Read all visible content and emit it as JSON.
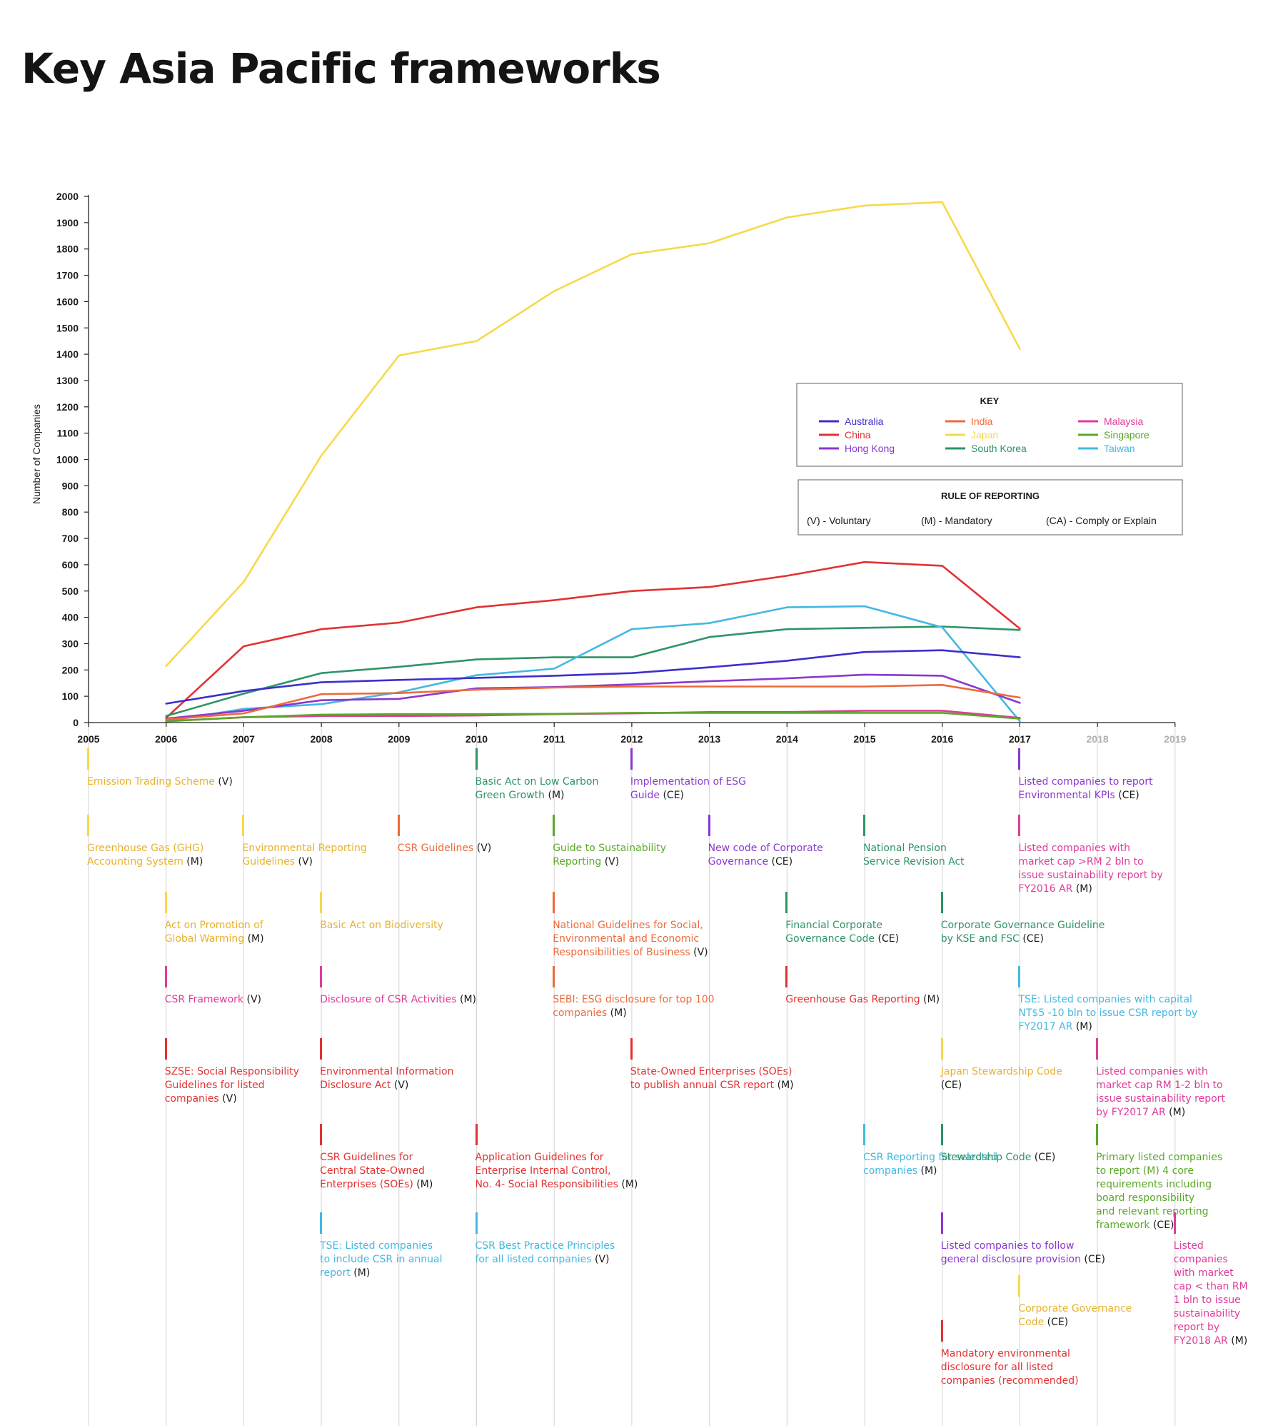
{
  "title": "Key Asia Pacific frameworks",
  "colors": {
    "Australia": "#3d2fcc",
    "China": "#e23232",
    "Hong Kong": "#8a38cf",
    "India": "#ed6a3a",
    "Japan": "#f7d94a",
    "South Korea": "#2e9466",
    "Malaysia": "#de3c99",
    "Singapore": "#5aa828",
    "Taiwan": "#44b8e2",
    "japan_text": "#e8b22c"
  },
  "chart_data": {
    "type": "line",
    "ylabel": "Number of Companies",
    "xlabel": "",
    "ylim": [
      0,
      2000
    ],
    "yticks": [
      0,
      100,
      200,
      300,
      400,
      500,
      600,
      700,
      800,
      900,
      1000,
      1100,
      1200,
      1300,
      1400,
      1500,
      1600,
      1700,
      1800,
      1900,
      2000
    ],
    "xlim": [
      2005,
      2019
    ],
    "xticks": [
      2005,
      2006,
      2007,
      2008,
      2009,
      2010,
      2011,
      2012,
      2013,
      2014,
      2015,
      2016,
      2017,
      2018,
      2019
    ],
    "x": [
      2006,
      2007,
      2008,
      2009,
      2010,
      2011,
      2012,
      2013,
      2014,
      2015,
      2016,
      2017
    ],
    "series": [
      {
        "name": "Japan",
        "values": [
          215,
          535,
          1015,
          1395,
          1450,
          1640,
          1780,
          1822,
          1920,
          1965,
          1978,
          1420
        ]
      },
      {
        "name": "China",
        "values": [
          18,
          290,
          355,
          380,
          438,
          465,
          500,
          515,
          558,
          610,
          596,
          357
        ]
      },
      {
        "name": "South Korea",
        "values": [
          25,
          110,
          188,
          212,
          240,
          248,
          248,
          325,
          355,
          360,
          365,
          352
        ]
      },
      {
        "name": "Taiwan",
        "values": [
          5,
          52,
          70,
          115,
          180,
          205,
          355,
          378,
          438,
          442,
          362,
          5
        ]
      },
      {
        "name": "Australia",
        "values": [
          72,
          120,
          153,
          162,
          170,
          178,
          188,
          210,
          235,
          268,
          275,
          248
        ]
      },
      {
        "name": "Hong Kong",
        "values": [
          15,
          45,
          85,
          90,
          130,
          135,
          145,
          157,
          168,
          182,
          178,
          75
        ]
      },
      {
        "name": "India",
        "values": [
          12,
          35,
          108,
          112,
          125,
          133,
          137,
          137,
          137,
          137,
          143,
          95
        ]
      },
      {
        "name": "Malaysia",
        "values": [
          5,
          20,
          25,
          25,
          27,
          32,
          35,
          40,
          40,
          45,
          45,
          18
        ]
      },
      {
        "name": "Singapore",
        "values": [
          5,
          20,
          30,
          32,
          32,
          33,
          37,
          37,
          37,
          37,
          37,
          15
        ]
      }
    ],
    "legend": {
      "title": "KEY",
      "placement": "right",
      "entries": [
        "Australia",
        "China",
        "Hong Kong",
        "India",
        "Japan",
        "South Korea",
        "Malaysia",
        "Singapore",
        "Taiwan"
      ]
    },
    "rule_box": {
      "title": "RULE OF REPORTING",
      "items": [
        "(V) - Voluntary",
        "(M) - Mandatory",
        "(CA) - Comply or Explain"
      ]
    }
  },
  "annotations": [
    {
      "year": 2005,
      "row": 0,
      "country": "Japan",
      "lines": [
        "Emission Trading Scheme"
      ],
      "code": "(V)"
    },
    {
      "year": 2005,
      "row": 1,
      "country": "Japan",
      "lines": [
        "Greenhouse Gas (GHG)",
        "Accounting System"
      ],
      "code": "(M)"
    },
    {
      "year": 2006,
      "row": 2,
      "country": "Japan",
      "lines": [
        "Act on Promotion of",
        "Global Warming"
      ],
      "code": "(M)"
    },
    {
      "year": 2006,
      "row": 3,
      "country": "Malaysia",
      "lines": [
        "CSR Framework"
      ],
      "code": "(V)"
    },
    {
      "year": 2006,
      "row": 4,
      "country": "China",
      "lines": [
        "SZSE: Social Responsibility",
        "Guidelines for listed",
        "companies"
      ],
      "code": "(V)"
    },
    {
      "year": 2007,
      "row": 1,
      "country": "Japan",
      "lines": [
        "Environmental Reporting",
        "Guidelines"
      ],
      "code": "(V)"
    },
    {
      "year": 2008,
      "row": 2,
      "country": "Japan",
      "lines": [
        "Basic Act on Biodiversity"
      ],
      "code": ""
    },
    {
      "year": 2008,
      "row": 3,
      "country": "Malaysia",
      "lines": [
        "Disclosure of CSR Activities"
      ],
      "code": "(M)"
    },
    {
      "year": 2008,
      "row": 4,
      "country": "China",
      "lines": [
        "Environmental Information",
        "Disclosure Act"
      ],
      "code": "(V)"
    },
    {
      "year": 2008,
      "row": 5,
      "country": "China",
      "lines": [
        "CSR Guidelines for",
        "Central State-Owned",
        "Enterprises (SOEs)"
      ],
      "code": "(M)"
    },
    {
      "year": 2008,
      "row": 6,
      "country": "Taiwan",
      "lines": [
        "TSE: Listed companies",
        "to include CSR in annual",
        "report"
      ],
      "code": "(M)"
    },
    {
      "year": 2009,
      "row": 1,
      "country": "India",
      "lines": [
        "CSR Guidelines"
      ],
      "code": "(V)"
    },
    {
      "year": 2010,
      "row": 0,
      "country": "South Korea",
      "lines": [
        "Basic Act on Low Carbon",
        "Green Growth"
      ],
      "code": "(M)"
    },
    {
      "year": 2010,
      "row": 5,
      "country": "China",
      "lines": [
        "Application Guidelines for",
        "Enterprise Internal Control,",
        "No. 4- Social Responsibilities"
      ],
      "code": "(M)"
    },
    {
      "year": 2010,
      "row": 6,
      "country": "Taiwan",
      "lines": [
        "CSR Best Practice Principles",
        "for all listed companies"
      ],
      "code": "(V)"
    },
    {
      "year": 2011,
      "row": 1,
      "country": "Singapore",
      "lines": [
        "Guide to Sustainability",
        "Reporting"
      ],
      "code": "(V)"
    },
    {
      "year": 2011,
      "row": 2,
      "country": "India",
      "lines": [
        "National Guidelines for Social,",
        "Environmental and Economic",
        "Responsibilities of Business"
      ],
      "code": "(V)"
    },
    {
      "year": 2011,
      "row": 3,
      "country": "India",
      "lines": [
        "SEBI: ESG disclosure for top 100",
        "companies"
      ],
      "code": "(M)"
    },
    {
      "year": 2012,
      "row": 0,
      "country": "Hong Kong",
      "lines": [
        "Implementation of ESG",
        "Guide"
      ],
      "code": "(CE)"
    },
    {
      "year": 2012,
      "row": 4,
      "country": "China",
      "lines": [
        "State-Owned Enterprises (SOEs)",
        "to publish annual CSR report"
      ],
      "code": "(M)"
    },
    {
      "year": 2013,
      "row": 1,
      "country": "Hong Kong",
      "lines": [
        "New code of Corporate",
        "Governance"
      ],
      "code": "(CE)"
    },
    {
      "year": 2014,
      "row": 2,
      "country": "South Korea",
      "lines": [
        "Financial Corporate",
        "Governance Code"
      ],
      "code": "(CE)"
    },
    {
      "year": 2014,
      "row": 3,
      "country": "China",
      "lines": [
        "Greenhouse Gas Reporting"
      ],
      "code": "(M)"
    },
    {
      "year": 2015,
      "row": 1,
      "country": "South Korea",
      "lines": [
        "National Pension",
        "Service Revision Act"
      ],
      "code": ""
    },
    {
      "year": 2015,
      "row": 5,
      "country": "Taiwan",
      "lines": [
        "CSR Reporting for selected",
        "companies"
      ],
      "code": "(M)"
    },
    {
      "year": 2016,
      "row": 2,
      "country": "South Korea",
      "lines": [
        "Corporate Governance Guideline",
        "by KSE and FSC"
      ],
      "code": "(CE)"
    },
    {
      "year": 2016,
      "row": 4,
      "country": "Japan",
      "lines": [
        "Japan Stewardship Code",
        ""
      ],
      "code": "(CE)"
    },
    {
      "year": 2016,
      "row": 5,
      "country": "South Korea",
      "lines": [
        "Stewardship Code"
      ],
      "code": "(CE)"
    },
    {
      "year": 2016,
      "row": 6,
      "country": "Hong Kong",
      "lines": [
        "Listed companies to follow",
        "general disclosure provision"
      ],
      "code": "(CE)"
    },
    {
      "year": 2016,
      "row": 8,
      "country": "China",
      "lines": [
        "Mandatory environmental",
        "disclosure for all listed",
        "companies (recommended)"
      ],
      "code": ""
    },
    {
      "year": 2017,
      "row": 0,
      "country": "Hong Kong",
      "lines": [
        "Listed companies to report",
        "Environmental KPIs"
      ],
      "code": "(CE)"
    },
    {
      "year": 2017,
      "row": 1,
      "country": "Malaysia",
      "lines": [
        "Listed companies with",
        "market cap >RM 2 bln to",
        "issue sustainability report by",
        "FY2016 AR"
      ],
      "code": "(M)"
    },
    {
      "year": 2017,
      "row": 3,
      "country": "Taiwan",
      "lines": [
        "TSE: Listed companies with capital",
        "NT$5 -10 bln to issue CSR report by",
        "FY2017 AR"
      ],
      "code": "(M)"
    },
    {
      "year": 2017,
      "row": 7,
      "country": "Japan",
      "lines": [
        "Corporate Governance",
        "Code"
      ],
      "code": "(CE)"
    },
    {
      "year": 2018,
      "row": 4,
      "country": "Malaysia",
      "lines": [
        "Listed companies with",
        "market cap RM 1-2 bln to",
        "issue sustainability report",
        "by FY2017 AR"
      ],
      "code": "(M)"
    },
    {
      "year": 2018,
      "row": 5,
      "country": "Singapore",
      "lines": [
        "Primary listed companies",
        "to report (M) 4 core",
        "requirements including",
        "board responsibility",
        "and relevant reporting",
        "framework"
      ],
      "code": "(CE)"
    },
    {
      "year": 2019,
      "row": 6,
      "country": "Malaysia",
      "lines": [
        "Listed",
        "companies",
        "with market",
        "cap < than RM",
        "1 bln to issue",
        "sustainability",
        "report by",
        "FY2018 AR"
      ],
      "code": "(M)"
    }
  ]
}
